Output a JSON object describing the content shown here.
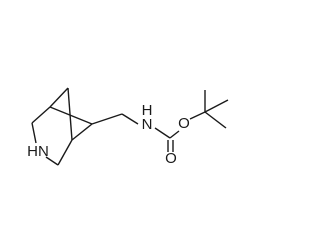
{
  "atoms": {
    "ring_nh": "HN",
    "chain_n": "N",
    "chain_h": "H",
    "ester_o": "O",
    "carbonyl_o": "O"
  }
}
